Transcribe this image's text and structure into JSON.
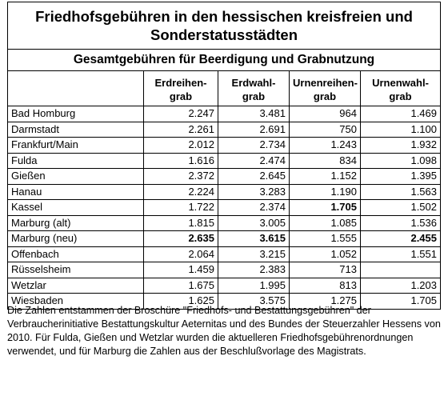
{
  "title": "Friedhofsgebühren in den hessischen kreisfreien und Sonderstatusstädten",
  "subtitle": "Gesamtgebühren für Beerdigung und Grabnutzung",
  "columns": [
    [
      "Erdreihen-",
      "grab"
    ],
    [
      "Erdwahl-",
      "grab"
    ],
    [
      "Urnenreihen-",
      "grab"
    ],
    [
      "Urnenwahl-",
      "grab"
    ]
  ],
  "rows": [
    {
      "city": "Bad Homburg",
      "cells": [
        {
          "text": "2.247"
        },
        {
          "text": "3.481"
        },
        {
          "text": "964"
        },
        {
          "text": "1.469"
        }
      ]
    },
    {
      "city": "Darmstadt",
      "cells": [
        {
          "text": "2.261"
        },
        {
          "text": "2.691"
        },
        {
          "text": "750"
        },
        {
          "text": "1.100"
        }
      ]
    },
    {
      "city": "Frankfurt/Main",
      "cells": [
        {
          "text": "2.012"
        },
        {
          "text": "2.734"
        },
        {
          "text": "1.243"
        },
        {
          "text": "1.932"
        }
      ]
    },
    {
      "city": "Fulda",
      "cells": [
        {
          "text": "1.616"
        },
        {
          "text": "2.474"
        },
        {
          "text": "834"
        },
        {
          "text": "1.098"
        }
      ]
    },
    {
      "city": "Gießen",
      "cells": [
        {
          "text": "2.372"
        },
        {
          "text": "2.645"
        },
        {
          "text": "1.152"
        },
        {
          "text": "1.395"
        }
      ]
    },
    {
      "city": "Hanau",
      "cells": [
        {
          "text": "2.224"
        },
        {
          "text": "3.283"
        },
        {
          "text": "1.190"
        },
        {
          "text": "1.563"
        }
      ]
    },
    {
      "city": "Kassel",
      "cells": [
        {
          "text": "1.722"
        },
        {
          "text": "2.374"
        },
        {
          "text": "1.705",
          "bold": true
        },
        {
          "text": "1.502"
        }
      ]
    },
    {
      "city": "Marburg (alt)",
      "cells": [
        {
          "text": "1.815"
        },
        {
          "text": "3.005"
        },
        {
          "text": "1.085"
        },
        {
          "text": "1.536"
        }
      ]
    },
    {
      "city": "Marburg (neu)",
      "cells": [
        {
          "text": "2.635",
          "bold": true
        },
        {
          "text": "3.615",
          "bold": true
        },
        {
          "text": "1.555"
        },
        {
          "text": "2.455",
          "bold": true
        }
      ]
    },
    {
      "city": "Offenbach",
      "cells": [
        {
          "text": "2.064"
        },
        {
          "text": "3.215"
        },
        {
          "text": "1.052"
        },
        {
          "text": "1.551"
        }
      ]
    },
    {
      "city": "Rüsselsheim",
      "cells": [
        {
          "text": "1.459"
        },
        {
          "text": "2.383"
        },
        {
          "text": "713"
        },
        {
          "text": null
        }
      ]
    },
    {
      "city": "Wetzlar",
      "cells": [
        {
          "text": "1.675"
        },
        {
          "text": "1.995"
        },
        {
          "text": "813"
        },
        {
          "text": "1.203"
        }
      ]
    },
    {
      "city": "Wiesbaden",
      "cells": [
        {
          "text": "1.625"
        },
        {
          "text": "3.575"
        },
        {
          "text": "1.275"
        },
        {
          "text": "1.705"
        }
      ]
    }
  ],
  "note": "Die Zahlen entstammen der Broschüre \"Friedhofs- und Bestattungsgebühren\" der Verbraucherinitiative Bestattungskultur Aeternitas und des Bundes der Steuerzahler Hessens von 2010. Für Fulda, Gießen und Wetzlar wurden die aktuelleren Friedhofsgebührenordnungen verwendet, und für Marburg die Zahlen aus der Beschlußvorlage des Magistrats."
}
